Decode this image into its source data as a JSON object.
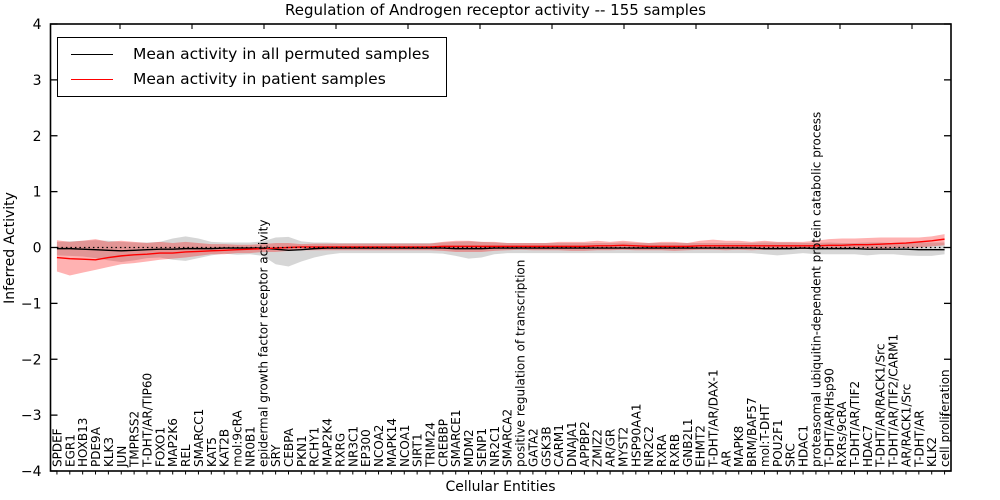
{
  "figure": {
    "title": "Regulation of Androgen receptor activity -- 155 samples",
    "xlabel": "Cellular Entities",
    "ylabel": "Inferred Activity"
  },
  "legend": {
    "items": [
      {
        "label": "Mean activity in all permuted samples",
        "color": "#000000"
      },
      {
        "label": "Mean activity in patient samples",
        "color": "#ff0000"
      }
    ],
    "position": "upper left"
  },
  "chart_data": {
    "type": "line",
    "title": "Regulation of Androgen receptor activity -- 155 samples",
    "xlabel": "Cellular Entities",
    "ylabel": "Inferred Activity",
    "ylim": [
      -4,
      4
    ],
    "yticks": [
      -4,
      -3,
      -2,
      -1,
      0,
      1,
      2,
      3,
      4
    ],
    "grid": false,
    "legend_position": "upper left",
    "zero_line": true,
    "categories": [
      "SPDEF",
      "EGR1",
      "HOXB13",
      "PDE9A",
      "KLK3",
      "JUN",
      "TMPRSS2",
      "T-DHT/AR/TIP60",
      "FOXO1",
      "MAP2K6",
      "REL",
      "SMARCC1",
      "KAT5",
      "KAT2B",
      "mol:9cRA",
      "NR0B1",
      "epidermal growth factor receptor activity",
      "SRY",
      "CEBPA",
      "PKN1",
      "RCHY1",
      "MAP2K4",
      "RXRG",
      "NR3C1",
      "EP300",
      "NCOA2",
      "MAPK14",
      "NCOA1",
      "SIRT1",
      "TRIM24",
      "CREBBP",
      "SMARCE1",
      "MDM2",
      "SENP1",
      "NR2C1",
      "SMARCA2",
      "positive regulation of transcription",
      "GATA2",
      "GSK3B",
      "CARM1",
      "DNAJA1",
      "APPBP2",
      "ZMIZ2",
      "AR/GR",
      "MYST2",
      "HSP90AA1",
      "NR2C2",
      "RXRA",
      "RXRB",
      "GNB2L1",
      "EHMT2",
      "T-DHT/AR/DAX-1",
      "AR",
      "MAPK8",
      "BRM/BAF57",
      "mol:T-DHT",
      "POU2F1",
      "SRC",
      "HDAC1",
      "proteasomal ubiquitin-dependent protein catabolic process",
      "T-DHT/AR/Hsp90",
      "RXRs/9cRA",
      "T-DHT/AR/TIF2",
      "HDAC7",
      "T-DHT/AR/RACK1/Src",
      "T-DHT/AR/TIF2/CARM1",
      "AR/RACK1/Src",
      "T-DHT/AR",
      "KLK2",
      "cell proliferation"
    ],
    "series": [
      {
        "name": "Mean activity in all permuted samples",
        "color": "#000000",
        "values": [
          -0.02,
          -0.02,
          -0.03,
          -0.04,
          -0.05,
          -0.06,
          -0.05,
          -0.04,
          -0.03,
          -0.03,
          -0.02,
          -0.02,
          -0.02,
          -0.01,
          -0.01,
          -0.01,
          -0.01,
          -0.03,
          -0.05,
          -0.04,
          -0.02,
          -0.01,
          -0.01,
          -0.01,
          -0.01,
          -0.01,
          -0.01,
          -0.01,
          -0.01,
          -0.01,
          -0.01,
          -0.02,
          -0.02,
          -0.02,
          -0.01,
          -0.01,
          -0.01,
          -0.01,
          -0.01,
          -0.01,
          -0.01,
          -0.01,
          -0.01,
          -0.01,
          -0.01,
          -0.01,
          -0.01,
          -0.01,
          -0.01,
          -0.01,
          -0.01,
          -0.01,
          -0.01,
          -0.01,
          -0.01,
          -0.02,
          -0.02,
          -0.02,
          -0.01,
          -0.02,
          -0.02,
          -0.02,
          -0.02,
          -0.03,
          -0.03,
          -0.03,
          -0.03,
          -0.04,
          -0.04,
          -0.04
        ]
      },
      {
        "name": "Mean activity in patient samples",
        "color": "#ff0000",
        "values": [
          -0.18,
          -0.2,
          -0.21,
          -0.22,
          -0.18,
          -0.15,
          -0.13,
          -0.12,
          -0.1,
          -0.1,
          -0.08,
          -0.07,
          -0.06,
          -0.05,
          -0.04,
          -0.03,
          -0.02,
          -0.01,
          0.0,
          0.01,
          0.01,
          0.01,
          0.01,
          0.01,
          0.01,
          0.01,
          0.01,
          0.01,
          0.01,
          0.01,
          0.02,
          0.02,
          0.02,
          0.02,
          0.02,
          0.02,
          0.02,
          0.02,
          0.02,
          0.02,
          0.02,
          0.02,
          0.03,
          0.03,
          0.04,
          0.03,
          0.02,
          0.02,
          0.02,
          0.02,
          0.03,
          0.03,
          0.03,
          0.03,
          0.03,
          0.03,
          0.03,
          0.03,
          0.03,
          0.03,
          0.04,
          0.04,
          0.05,
          0.05,
          0.06,
          0.07,
          0.08,
          0.1,
          0.12,
          0.15
        ]
      }
    ],
    "bands": [
      {
        "name": "permuted samples spread",
        "color": "#808080",
        "opacity": 0.32,
        "upper": [
          0.1,
          0.11,
          0.12,
          0.13,
          0.12,
          0.1,
          0.09,
          0.09,
          0.1,
          0.16,
          0.2,
          0.16,
          0.1,
          0.09,
          0.09,
          0.09,
          0.11,
          0.18,
          0.19,
          0.11,
          0.09,
          0.09,
          0.08,
          0.08,
          0.08,
          0.08,
          0.08,
          0.08,
          0.08,
          0.08,
          0.09,
          0.1,
          0.11,
          0.1,
          0.09,
          0.08,
          0.08,
          0.08,
          0.08,
          0.08,
          0.08,
          0.08,
          0.08,
          0.08,
          0.09,
          0.08,
          0.08,
          0.08,
          0.08,
          0.08,
          0.08,
          0.08,
          0.08,
          0.08,
          0.08,
          0.09,
          0.09,
          0.09,
          0.08,
          0.08,
          0.09,
          0.08,
          0.08,
          0.09,
          0.09,
          0.08,
          0.09,
          0.09,
          0.09,
          0.09
        ],
        "lower": [
          -0.14,
          -0.15,
          -0.16,
          -0.19,
          -0.23,
          -0.26,
          -0.23,
          -0.19,
          -0.18,
          -0.22,
          -0.24,
          -0.19,
          -0.14,
          -0.11,
          -0.13,
          -0.12,
          -0.15,
          -0.3,
          -0.34,
          -0.25,
          -0.18,
          -0.13,
          -0.1,
          -0.1,
          -0.1,
          -0.1,
          -0.1,
          -0.1,
          -0.1,
          -0.1,
          -0.11,
          -0.15,
          -0.2,
          -0.18,
          -0.12,
          -0.1,
          -0.1,
          -0.1,
          -0.1,
          -0.1,
          -0.1,
          -0.1,
          -0.1,
          -0.1,
          -0.1,
          -0.1,
          -0.1,
          -0.1,
          -0.1,
          -0.1,
          -0.1,
          -0.1,
          -0.1,
          -0.1,
          -0.1,
          -0.12,
          -0.14,
          -0.12,
          -0.1,
          -0.12,
          -0.12,
          -0.12,
          -0.12,
          -0.14,
          -0.12,
          -0.12,
          -0.14,
          -0.15,
          -0.15,
          -0.12
        ]
      },
      {
        "name": "patient samples spread",
        "color": "#ff0000",
        "opacity": 0.3,
        "upper": [
          0.13,
          0.1,
          0.12,
          0.15,
          0.1,
          0.12,
          0.1,
          0.08,
          0.1,
          0.08,
          0.1,
          0.08,
          0.06,
          0.06,
          0.05,
          0.05,
          0.06,
          0.08,
          0.08,
          0.06,
          0.07,
          0.07,
          0.07,
          0.07,
          0.07,
          0.07,
          0.07,
          0.07,
          0.07,
          0.07,
          0.1,
          0.12,
          0.12,
          0.1,
          0.1,
          0.08,
          0.08,
          0.08,
          0.08,
          0.1,
          0.1,
          0.1,
          0.12,
          0.1,
          0.12,
          0.1,
          0.08,
          0.1,
          0.1,
          0.08,
          0.12,
          0.14,
          0.12,
          0.12,
          0.1,
          0.12,
          0.1,
          0.1,
          0.1,
          0.12,
          0.15,
          0.16,
          0.16,
          0.17,
          0.18,
          0.18,
          0.18,
          0.18,
          0.2,
          0.24
        ],
        "lower": [
          -0.43,
          -0.5,
          -0.45,
          -0.4,
          -0.35,
          -0.3,
          -0.28,
          -0.25,
          -0.22,
          -0.2,
          -0.18,
          -0.15,
          -0.12,
          -0.12,
          -0.1,
          -0.1,
          -0.08,
          -0.08,
          -0.06,
          -0.05,
          -0.05,
          -0.05,
          -0.05,
          -0.05,
          -0.05,
          -0.05,
          -0.05,
          -0.05,
          -0.05,
          -0.05,
          -0.06,
          -0.08,
          -0.08,
          -0.08,
          -0.06,
          -0.05,
          -0.04,
          -0.05,
          -0.05,
          -0.05,
          -0.06,
          -0.06,
          -0.05,
          -0.05,
          -0.04,
          -0.05,
          -0.05,
          -0.05,
          -0.06,
          -0.05,
          -0.04,
          -0.04,
          -0.05,
          -0.04,
          -0.05,
          -0.04,
          -0.04,
          -0.03,
          -0.03,
          -0.03,
          -0.02,
          -0.02,
          -0.02,
          -0.02,
          -0.02,
          -0.01,
          -0.01,
          0.0,
          0.02,
          0.04
        ]
      }
    ]
  },
  "colors": {
    "frame": "#000000",
    "background": "#ffffff",
    "permuted_line": "#000000",
    "patient_line": "#ff0000"
  }
}
